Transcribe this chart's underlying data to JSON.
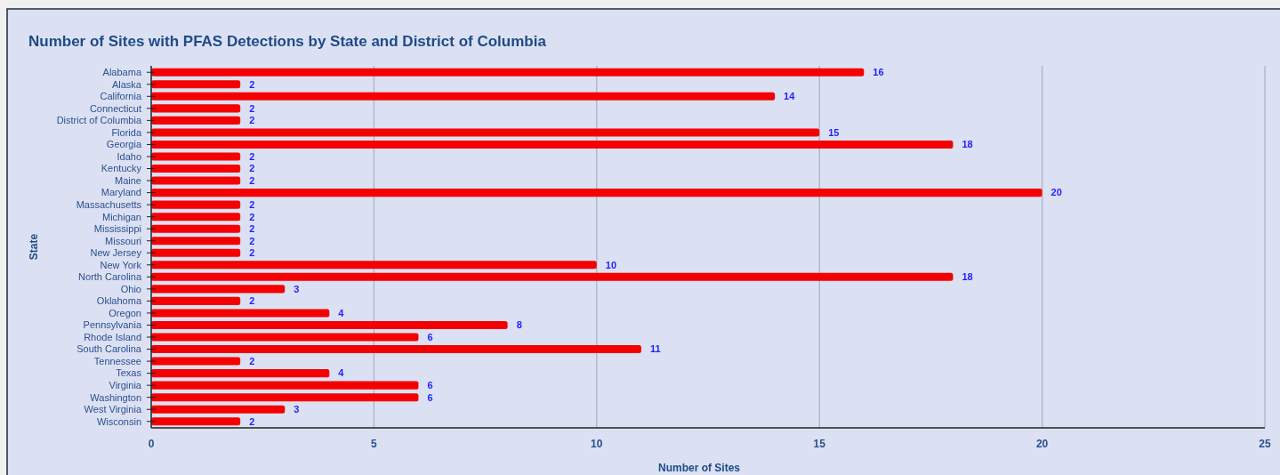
{
  "chart_data": {
    "type": "bar",
    "orientation": "horizontal",
    "title": "Number of Sites with PFAS Detections by State and District of Columbia",
    "xlabel": "Number of Sites",
    "ylabel": "State",
    "categories": [
      "Alabama",
      "Alaska",
      "California",
      "Connecticut",
      "District of Columbia",
      "Florida",
      "Georgia",
      "Idaho",
      "Kentucky",
      "Maine",
      "Maryland",
      "Massachusetts",
      "Michigan",
      "Mississippi",
      "Missouri",
      "New Jersey",
      "New York",
      "North Carolina",
      "Ohio",
      "Oklahoma",
      "Oregon",
      "Pennsylvania",
      "Rhode Island",
      "South Carolina",
      "Tennessee",
      "Texas",
      "Virginia",
      "Washington",
      "West Virginia",
      "Wisconsin"
    ],
    "values": [
      16,
      2,
      14,
      2,
      2,
      15,
      18,
      2,
      2,
      2,
      20,
      2,
      2,
      2,
      2,
      2,
      10,
      18,
      3,
      2,
      4,
      8,
      6,
      11,
      2,
      4,
      6,
      6,
      3,
      2
    ],
    "color": "#f50000",
    "xlim": [
      0,
      25
    ],
    "xticks": [
      0,
      5,
      10,
      15,
      20,
      25
    ],
    "grid": "x",
    "data_labels": true
  }
}
